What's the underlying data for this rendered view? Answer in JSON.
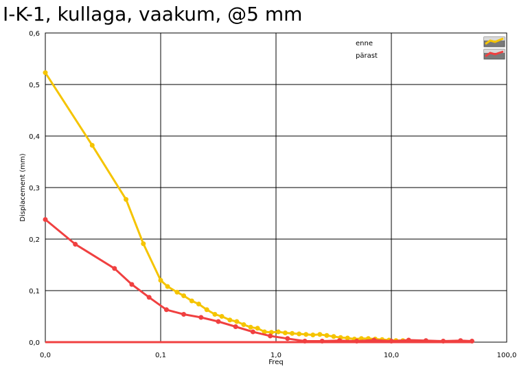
{
  "chart_data": {
    "type": "line",
    "title": "I-K-1, kullaga, vaakum, @5 mm",
    "xlabel": "Freq",
    "ylabel": "Displacement (mm)",
    "x_scale": "log",
    "xlim": [
      0.01,
      100
    ],
    "ylim": [
      0,
      0.6
    ],
    "x_ticks": [
      0.01,
      0.1,
      1,
      10,
      100
    ],
    "x_tick_labels": [
      "0,0",
      "0,1",
      "1,0",
      "10,0",
      "100,0"
    ],
    "y_ticks": [
      0,
      0.1,
      0.2,
      0.3,
      0.4,
      0.5,
      0.6
    ],
    "y_tick_labels": [
      "0,0",
      "0,1",
      "0,2",
      "0,3",
      "0,4",
      "0,5",
      "0,6"
    ],
    "grid": true,
    "legend_position": "top-right",
    "series": [
      {
        "name": "enne",
        "color": "#f5c400",
        "x": [
          0.01,
          0.0255,
          0.0501,
          0.0708,
          0.1,
          0.1148,
          0.1388,
          0.1585,
          0.1862,
          0.2138,
          0.2512,
          0.2951,
          0.3388,
          0.3981,
          0.4571,
          0.5248,
          0.6026,
          0.6918,
          0.7943,
          0.912,
          1.047,
          1.202,
          1.38,
          1.585,
          1.82,
          2.089,
          2.399,
          2.754,
          3.162,
          3.631,
          4.169,
          4.786,
          5.495,
          6.31,
          7.244,
          8.318,
          9.55,
          10.96,
          12.59
        ],
        "y": [
          0.523,
          0.382,
          0.277,
          0.191,
          0.12,
          0.108,
          0.097,
          0.09,
          0.08,
          0.074,
          0.063,
          0.054,
          0.05,
          0.043,
          0.04,
          0.034,
          0.029,
          0.027,
          0.02,
          0.019,
          0.02,
          0.018,
          0.017,
          0.016,
          0.015,
          0.014,
          0.015,
          0.013,
          0.011,
          0.009,
          0.008,
          0.006,
          0.007,
          0.007,
          0.006,
          0.005,
          0.004,
          0.003,
          0.003
        ]
      },
      {
        "name": "pärast",
        "color": "#f04040",
        "x": [
          0.01,
          0.0182,
          0.0398,
          0.0562,
          0.0794,
          0.1122,
          0.1585,
          0.2239,
          0.3162,
          0.4467,
          0.631,
          0.8913,
          1.259,
          1.778,
          2.512,
          3.548,
          5.012,
          7.079,
          10.0,
          14.13,
          19.95,
          28.18,
          39.81,
          50.0
        ],
        "y": [
          0.238,
          0.19,
          0.143,
          0.112,
          0.087,
          0.063,
          0.054,
          0.048,
          0.04,
          0.03,
          0.02,
          0.012,
          0.007,
          0.002,
          0.002,
          0.003,
          0.002,
          0.004,
          0.002,
          0.004,
          0.003,
          0.002,
          0.003,
          0.002
        ]
      },
      {
        "name": "",
        "color": "#f04040",
        "x": [
          0.01,
          50.0
        ],
        "y": [
          0.0,
          0.0
        ]
      }
    ]
  }
}
